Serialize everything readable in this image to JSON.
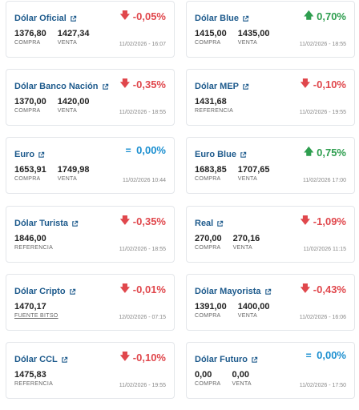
{
  "cards": [
    {
      "name": "Dólar Oficial",
      "change": "-0,05%",
      "dir": "down",
      "v1": "1376,80",
      "l1": "COMPRA",
      "v2": "1427,34",
      "l2": "VENTA",
      "time": "11/02/2026 - 16:07"
    },
    {
      "name": "Dólar Blue",
      "change": "0,70%",
      "dir": "up",
      "v1": "1415,00",
      "l1": "COMPRA",
      "v2": "1435,00",
      "l2": "VENTA",
      "time": "11/02/2026 - 18:55"
    },
    {
      "name": "Dólar Banco Nación",
      "change": "-0,35%",
      "dir": "down",
      "v1": "1370,00",
      "l1": "COMPRA",
      "v2": "1420,00",
      "l2": "VENTA",
      "time": "11/02/2026 - 18:55"
    },
    {
      "name": "Dólar MEP",
      "change": "-0,10%",
      "dir": "down",
      "v1": "1431,68",
      "l1": "REFERENCIA",
      "v2": "",
      "l2": "",
      "time": "11/02/2026 - 19:55"
    },
    {
      "name": "Euro",
      "change": "0,00%",
      "dir": "flat",
      "v1": "1653,91",
      "l1": "COMPRA",
      "v2": "1749,98",
      "l2": "VENTA",
      "time": "11/02/2026 10:44"
    },
    {
      "name": "Euro Blue",
      "change": "0,75%",
      "dir": "up",
      "v1": "1683,85",
      "l1": "COMPRA",
      "v2": "1707,65",
      "l2": "VENTA",
      "time": "11/02/2026 17:00"
    },
    {
      "name": "Dólar Turista",
      "change": "-0,35%",
      "dir": "down",
      "v1": "1846,00",
      "l1": "REFERENCIA",
      "v2": "",
      "l2": "",
      "time": "11/02/2026 - 18:55"
    },
    {
      "name": "Real",
      "change": "-1,09%",
      "dir": "down",
      "v1": "270,00",
      "l1": "COMPRA",
      "v2": "270,16",
      "l2": "VENTA",
      "time": "11/02/2026 11:15"
    },
    {
      "name": "Dólar Cripto",
      "change": "-0,01%",
      "dir": "down",
      "v1": "1470,17",
      "l1": "FUENTE BITSO",
      "v2": "",
      "l2": "",
      "time": "12/02/2026 - 07:15"
    },
    {
      "name": "Dólar Mayorista",
      "change": "-0,43%",
      "dir": "down",
      "v1": "1391,00",
      "l1": "COMPRA",
      "v2": "1400,00",
      "l2": "VENTA",
      "time": "11/02/2026 - 16:06"
    },
    {
      "name": "Dólar CCL",
      "change": "-0,10%",
      "dir": "down",
      "v1": "1475,83",
      "l1": "REFERENCIA",
      "v2": "",
      "l2": "",
      "time": "11/02/2026 - 19:55"
    },
    {
      "name": "Dólar Futuro",
      "change": "0,00%",
      "dir": "flat",
      "v1": "0,00",
      "l1": "COMPRA",
      "v2": "0,00",
      "l2": "VENTA",
      "time": "11/02/2026 - 17:50"
    }
  ],
  "icons": {
    "up": "arrow-up-icon",
    "down": "arrow-down-icon",
    "flat": "equals-icon",
    "link": "external-link-icon"
  },
  "colors": {
    "name": "#1d5a8c",
    "down": "#e0474c",
    "up": "#2e9e4f",
    "flat": "#1b8fd0"
  }
}
